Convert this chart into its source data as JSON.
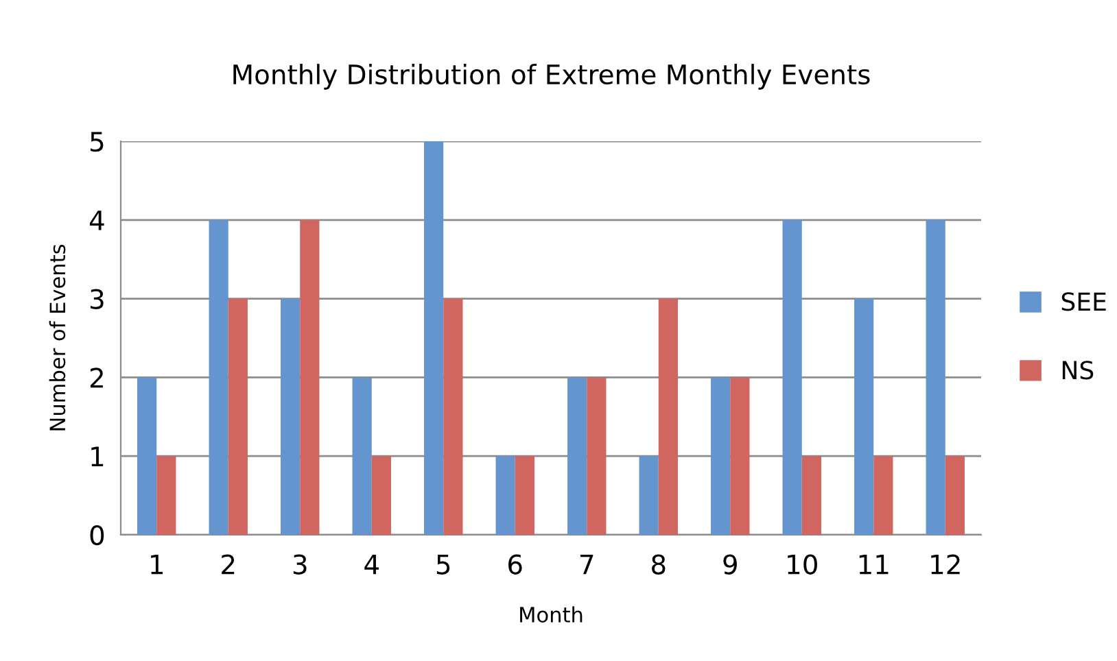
{
  "chart_data": {
    "type": "bar",
    "title": "Monthly Distribution of Extreme Monthly Events",
    "xlabel": "Month",
    "ylabel": "Number of Events",
    "categories": [
      "1",
      "2",
      "3",
      "4",
      "5",
      "6",
      "7",
      "8",
      "9",
      "10",
      "11",
      "12"
    ],
    "series": [
      {
        "name": "SEE",
        "color": "#6595cf",
        "values": [
          2,
          4,
          3,
          2,
          5,
          1,
          2,
          1,
          2,
          4,
          3,
          4
        ]
      },
      {
        "name": "NS",
        "color": "#d0665f",
        "values": [
          1,
          3,
          4,
          1,
          3,
          1,
          2,
          3,
          2,
          1,
          1,
          1
        ]
      }
    ],
    "ylim": [
      0,
      5
    ],
    "yticks": [
      0,
      1,
      2,
      3,
      4,
      5
    ],
    "grid": "y",
    "legend": "right"
  }
}
